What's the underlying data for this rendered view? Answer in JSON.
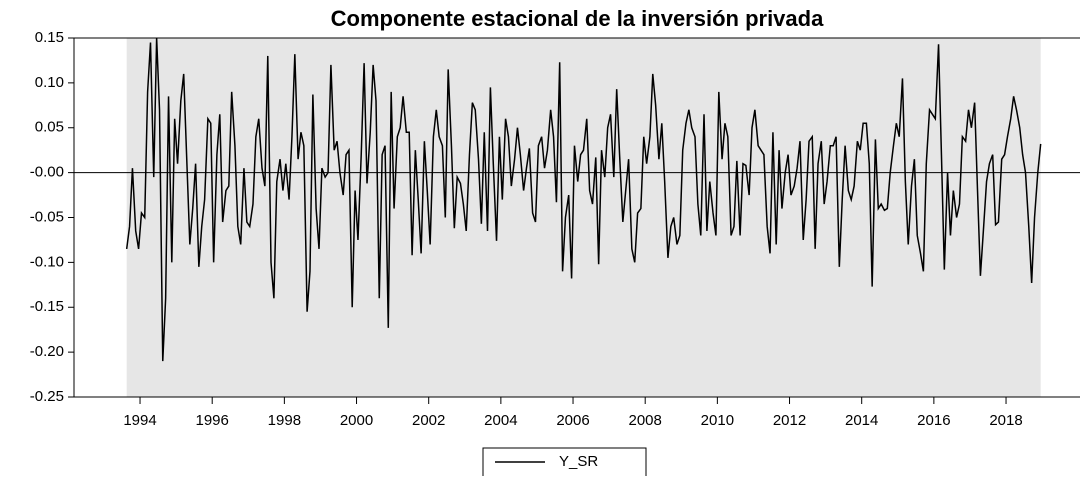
{
  "chart_data": {
    "type": "line",
    "title": "Componente estacional de la inversión privada",
    "x": [
      1993.63,
      1993.71,
      1993.79,
      1993.88,
      1993.96,
      1994.04,
      1994.13,
      1994.21,
      1994.29,
      1994.38,
      1994.46,
      1994.54,
      1994.63,
      1994.71,
      1994.79,
      1994.88,
      1994.96,
      1995.04,
      1995.13,
      1995.21,
      1995.29,
      1995.38,
      1995.46,
      1995.54,
      1995.63,
      1995.71,
      1995.79,
      1995.88,
      1995.96,
      1996.04,
      1996.13,
      1996.21,
      1996.29,
      1996.38,
      1996.46,
      1996.54,
      1996.63,
      1996.71,
      1996.79,
      1996.88,
      1996.96,
      1997.04,
      1997.13,
      1997.21,
      1997.29,
      1997.38,
      1997.46,
      1997.54,
      1997.63,
      1997.71,
      1997.79,
      1997.88,
      1997.96,
      1998.04,
      1998.13,
      1998.21,
      1998.29,
      1998.38,
      1998.46,
      1998.54,
      1998.63,
      1998.71,
      1998.79,
      1998.88,
      1998.96,
      1999.04,
      1999.13,
      1999.21,
      1999.29,
      1999.38,
      1999.46,
      1999.54,
      1999.63,
      1999.71,
      1999.79,
      1999.88,
      1999.96,
      2000.04,
      2000.13,
      2000.21,
      2000.29,
      2000.38,
      2000.46,
      2000.54,
      2000.63,
      2000.71,
      2000.79,
      2000.88,
      2000.96,
      2001.04,
      2001.13,
      2001.21,
      2001.29,
      2001.38,
      2001.46,
      2001.54,
      2001.63,
      2001.71,
      2001.79,
      2001.88,
      2001.96,
      2002.04,
      2002.13,
      2002.21,
      2002.29,
      2002.38,
      2002.46,
      2002.54,
      2002.63,
      2002.71,
      2002.79,
      2002.88,
      2002.96,
      2003.04,
      2003.13,
      2003.21,
      2003.29,
      2003.38,
      2003.46,
      2003.54,
      2003.63,
      2003.71,
      2003.79,
      2003.88,
      2003.96,
      2004.04,
      2004.13,
      2004.21,
      2004.29,
      2004.38,
      2004.46,
      2004.54,
      2004.63,
      2004.71,
      2004.79,
      2004.88,
      2004.96,
      2005.04,
      2005.13,
      2005.21,
      2005.29,
      2005.38,
      2005.46,
      2005.54,
      2005.63,
      2005.71,
      2005.79,
      2005.88,
      2005.96,
      2006.04,
      2006.13,
      2006.21,
      2006.29,
      2006.38,
      2006.46,
      2006.54,
      2006.63,
      2006.71,
      2006.79,
      2006.88,
      2006.96,
      2007.04,
      2007.13,
      2007.21,
      2007.29,
      2007.38,
      2007.46,
      2007.54,
      2007.63,
      2007.71,
      2007.79,
      2007.88,
      2007.96,
      2008.04,
      2008.13,
      2008.21,
      2008.29,
      2008.38,
      2008.46,
      2008.54,
      2008.63,
      2008.71,
      2008.79,
      2008.88,
      2008.96,
      2009.04,
      2009.13,
      2009.21,
      2009.29,
      2009.38,
      2009.46,
      2009.54,
      2009.63,
      2009.71,
      2009.79,
      2009.88,
      2009.96,
      2010.04,
      2010.13,
      2010.21,
      2010.29,
      2010.38,
      2010.46,
      2010.54,
      2010.63,
      2010.71,
      2010.79,
      2010.88,
      2010.96,
      2011.04,
      2011.13,
      2011.21,
      2011.29,
      2011.38,
      2011.46,
      2011.54,
      2011.63,
      2011.71,
      2011.79,
      2011.88,
      2011.96,
      2012.04,
      2012.13,
      2012.21,
      2012.29,
      2012.38,
      2012.46,
      2012.54,
      2012.63,
      2012.71,
      2012.79,
      2012.88,
      2012.96,
      2013.04,
      2013.13,
      2013.21,
      2013.29,
      2013.38,
      2013.46,
      2013.54,
      2013.63,
      2013.71,
      2013.79,
      2013.88,
      2013.96,
      2014.04,
      2014.13,
      2014.21,
      2014.29,
      2014.38,
      2014.46,
      2014.54,
      2014.63,
      2014.71,
      2014.79,
      2014.88,
      2014.96,
      2015.04,
      2015.13,
      2015.21,
      2015.29,
      2015.38,
      2015.46,
      2015.54,
      2015.63,
      2015.71,
      2015.79,
      2015.88,
      2015.96,
      2016.04,
      2016.13,
      2016.21,
      2016.29,
      2016.38,
      2016.46,
      2016.54,
      2016.63,
      2016.71,
      2016.79,
      2016.88,
      2016.96,
      2017.04,
      2017.13,
      2017.21,
      2017.29,
      2017.38,
      2017.46,
      2017.54,
      2017.63,
      2017.71,
      2017.79,
      2017.88,
      2017.96,
      2018.04,
      2018.13,
      2018.21,
      2018.29,
      2018.38,
      2018.46,
      2018.54,
      2018.63,
      2018.71,
      2018.79,
      2018.88,
      2018.96
    ],
    "series": [
      {
        "name": "Y_SR",
        "color": "#000000",
        "values": [
          -0.085,
          -0.06,
          0.005,
          -0.065,
          -0.085,
          -0.045,
          -0.05,
          0.09,
          0.145,
          -0.005,
          0.15,
          0.07,
          -0.21,
          -0.14,
          0.085,
          -0.1,
          0.06,
          0.01,
          0.08,
          0.11,
          0.02,
          -0.08,
          -0.04,
          0.01,
          -0.105,
          -0.06,
          -0.03,
          0.06,
          0.055,
          -0.1,
          0.02,
          0.065,
          -0.055,
          -0.02,
          -0.015,
          0.09,
          0.03,
          -0.06,
          -0.08,
          0.005,
          -0.055,
          -0.06,
          -0.035,
          0.04,
          0.06,
          0.005,
          -0.015,
          0.13,
          -0.1,
          -0.14,
          -0.01,
          0.015,
          -0.02,
          0.01,
          -0.03,
          0.04,
          0.132,
          0.015,
          0.045,
          0.03,
          -0.155,
          -0.11,
          0.087,
          -0.04,
          -0.085,
          0.005,
          -0.005,
          0.0,
          0.12,
          0.025,
          0.035,
          0.0,
          -0.025,
          0.02,
          0.025,
          -0.15,
          -0.02,
          -0.075,
          0.02,
          0.122,
          -0.012,
          0.045,
          0.12,
          0.08,
          -0.14,
          0.02,
          0.03,
          -0.173,
          0.09,
          -0.04,
          0.04,
          0.05,
          0.085,
          0.045,
          0.045,
          -0.092,
          0.025,
          -0.03,
          -0.09,
          0.035,
          -0.02,
          -0.08,
          0.04,
          0.07,
          0.04,
          0.03,
          -0.05,
          0.115,
          0.03,
          -0.062,
          -0.005,
          -0.012,
          -0.035,
          -0.065,
          0.02,
          0.078,
          0.07,
          0.015,
          -0.057,
          0.045,
          -0.065,
          0.095,
          0.01,
          -0.076,
          0.04,
          -0.03,
          0.06,
          0.04,
          -0.015,
          0.015,
          0.05,
          0.02,
          -0.02,
          0.005,
          0.027,
          -0.045,
          -0.055,
          0.03,
          0.04,
          0.005,
          0.025,
          0.07,
          0.04,
          -0.033,
          0.123,
          -0.11,
          -0.05,
          -0.025,
          -0.118,
          0.03,
          -0.01,
          0.02,
          0.025,
          0.06,
          -0.02,
          -0.035,
          0.017,
          -0.102,
          0.025,
          -0.005,
          0.05,
          0.065,
          -0.005,
          0.093,
          0.02,
          -0.055,
          -0.02,
          0.015,
          -0.085,
          -0.1,
          -0.045,
          -0.04,
          0.04,
          0.01,
          0.04,
          0.11,
          0.075,
          0.015,
          0.055,
          -0.01,
          -0.095,
          -0.06,
          -0.05,
          -0.08,
          -0.07,
          0.025,
          0.055,
          0.07,
          0.05,
          0.04,
          -0.035,
          -0.07,
          0.065,
          -0.065,
          -0.01,
          -0.045,
          -0.07,
          0.09,
          0.015,
          0.055,
          0.04,
          -0.07,
          -0.06,
          0.013,
          -0.07,
          0.01,
          0.008,
          -0.025,
          0.05,
          0.07,
          0.03,
          0.025,
          0.02,
          -0.06,
          -0.09,
          0.045,
          -0.08,
          0.025,
          -0.04,
          0.0,
          0.02,
          -0.025,
          -0.015,
          0.005,
          0.035,
          -0.075,
          -0.03,
          0.035,
          0.04,
          -0.085,
          0.01,
          0.035,
          -0.035,
          -0.01,
          0.03,
          0.03,
          0.04,
          -0.105,
          -0.03,
          0.03,
          -0.02,
          -0.03,
          -0.015,
          0.035,
          0.025,
          0.055,
          0.055,
          0.01,
          -0.127,
          0.037,
          -0.04,
          -0.035,
          -0.042,
          -0.04,
          0.0,
          0.03,
          0.055,
          0.04,
          0.105,
          -0.01,
          -0.08,
          -0.015,
          0.015,
          -0.07,
          -0.09,
          -0.11,
          0.01,
          0.07,
          0.065,
          0.06,
          0.143,
          0.02,
          -0.108,
          0.0,
          -0.07,
          -0.02,
          -0.05,
          -0.035,
          0.04,
          0.035,
          0.07,
          0.05,
          0.078,
          -0.02,
          -0.115,
          -0.06,
          -0.01,
          0.01,
          0.02,
          -0.058,
          -0.055,
          0.015,
          0.02,
          0.04,
          0.06,
          0.085,
          0.07,
          0.05,
          0.02,
          0.0,
          -0.06,
          -0.123,
          -0.05,
          0.0,
          0.032
        ]
      }
    ],
    "xlim": [
      1992.17,
      2020.05
    ],
    "xticks": [
      1994,
      1996,
      1998,
      2000,
      2002,
      2004,
      2006,
      2008,
      2010,
      2012,
      2014,
      2016,
      2018
    ],
    "ylim": [
      -0.25,
      0.15
    ],
    "yticks": [
      {
        "value": 0.15,
        "label": "0.15"
      },
      {
        "value": 0.1,
        "label": "0.10"
      },
      {
        "value": 0.05,
        "label": "0.05"
      },
      {
        "value": 0,
        "label": "-0.00"
      },
      {
        "value": -0.05,
        "label": "-0.05"
      },
      {
        "value": -0.1,
        "label": "-0.10"
      },
      {
        "value": -0.15,
        "label": "-0.15"
      },
      {
        "value": -0.2,
        "label": "-0.20"
      },
      {
        "value": -0.25,
        "label": "-0.25"
      }
    ],
    "shading": "#e6e6e6",
    "legend": "bottom"
  }
}
